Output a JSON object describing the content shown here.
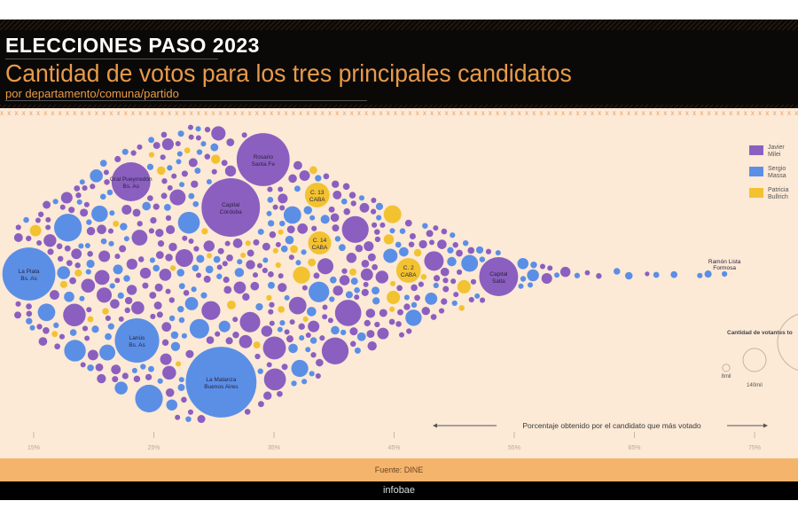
{
  "header": {
    "title": "ELECCIONES PASO 2023",
    "subtitle": "Cantidad de votos para los tres principales candidatos",
    "subsubtitle": "por departamento/comuna/partido"
  },
  "footer": {
    "source": "Fuente: DINE",
    "brand": "infobae"
  },
  "colors": {
    "milei": "#8b5fbf",
    "massa": "#5b8fe6",
    "bullrich": "#f2c230",
    "background": "#fce9d6"
  },
  "chart_data": {
    "type": "scatter",
    "subtype": "beeswarm-bubble",
    "xlabel": "Porcentaje obtenido por el candidato que más votado",
    "xticks": [
      "15%",
      "25%",
      "35%",
      "45%",
      "55%",
      "65%",
      "75%"
    ],
    "xlim": [
      15,
      75
    ],
    "grid": false,
    "legend": {
      "placement": "top-right",
      "entries": [
        {
          "key": "milei",
          "label": "Javier Milei"
        },
        {
          "key": "massa",
          "label": "Sergio Massa"
        },
        {
          "key": "bullrich",
          "label": "Patricia Bullrich"
        }
      ]
    },
    "size_legend": {
      "title": "Cantidad de votantes to",
      "entries": [
        {
          "label": "8mil",
          "votes": 8000
        },
        {
          "label": "140mil",
          "votes": 140000
        },
        {
          "label": "",
          "votes": 900000
        }
      ]
    },
    "labeled_points": [
      {
        "name": "La Plata",
        "region": "Bs. As",
        "winner": "massa",
        "pct": 14.6,
        "votes": 740000
      },
      {
        "name": "Gral Pueyrredón",
        "region": "Bs. As",
        "winner": "milei",
        "pct": 23.1,
        "votes": 400000
      },
      {
        "name": "Lanús",
        "region": "Bs. As",
        "winner": "massa",
        "pct": 23.6,
        "votes": 520000
      },
      {
        "name": "La Matanza",
        "region": "Buenos Aires",
        "winner": "massa",
        "pct": 30.6,
        "votes": 1320000
      },
      {
        "name": "Capital",
        "region": "Córdoba",
        "winner": "milei",
        "pct": 31.4,
        "votes": 900000
      },
      {
        "name": "Rosario",
        "region": "Santa Fe",
        "winner": "milei",
        "pct": 34.1,
        "votes": 740000
      },
      {
        "name": "C. 13",
        "region": "CABA",
        "winner": "bullrich",
        "pct": 38.6,
        "votes": 160000
      },
      {
        "name": "C. 14",
        "region": "CABA",
        "winner": "bullrich",
        "pct": 38.8,
        "votes": 140000
      },
      {
        "name": "C. 2",
        "region": "CABA",
        "winner": "bullrich",
        "pct": 46.2,
        "votes": 160000
      },
      {
        "name": "Capital",
        "region": "Salta",
        "winner": "milei",
        "pct": 53.7,
        "votes": 400000
      },
      {
        "name": "Ramón Lista",
        "region": "Formosa",
        "winner": "massa",
        "pct": 72.5,
        "votes": 8000
      }
    ]
  }
}
